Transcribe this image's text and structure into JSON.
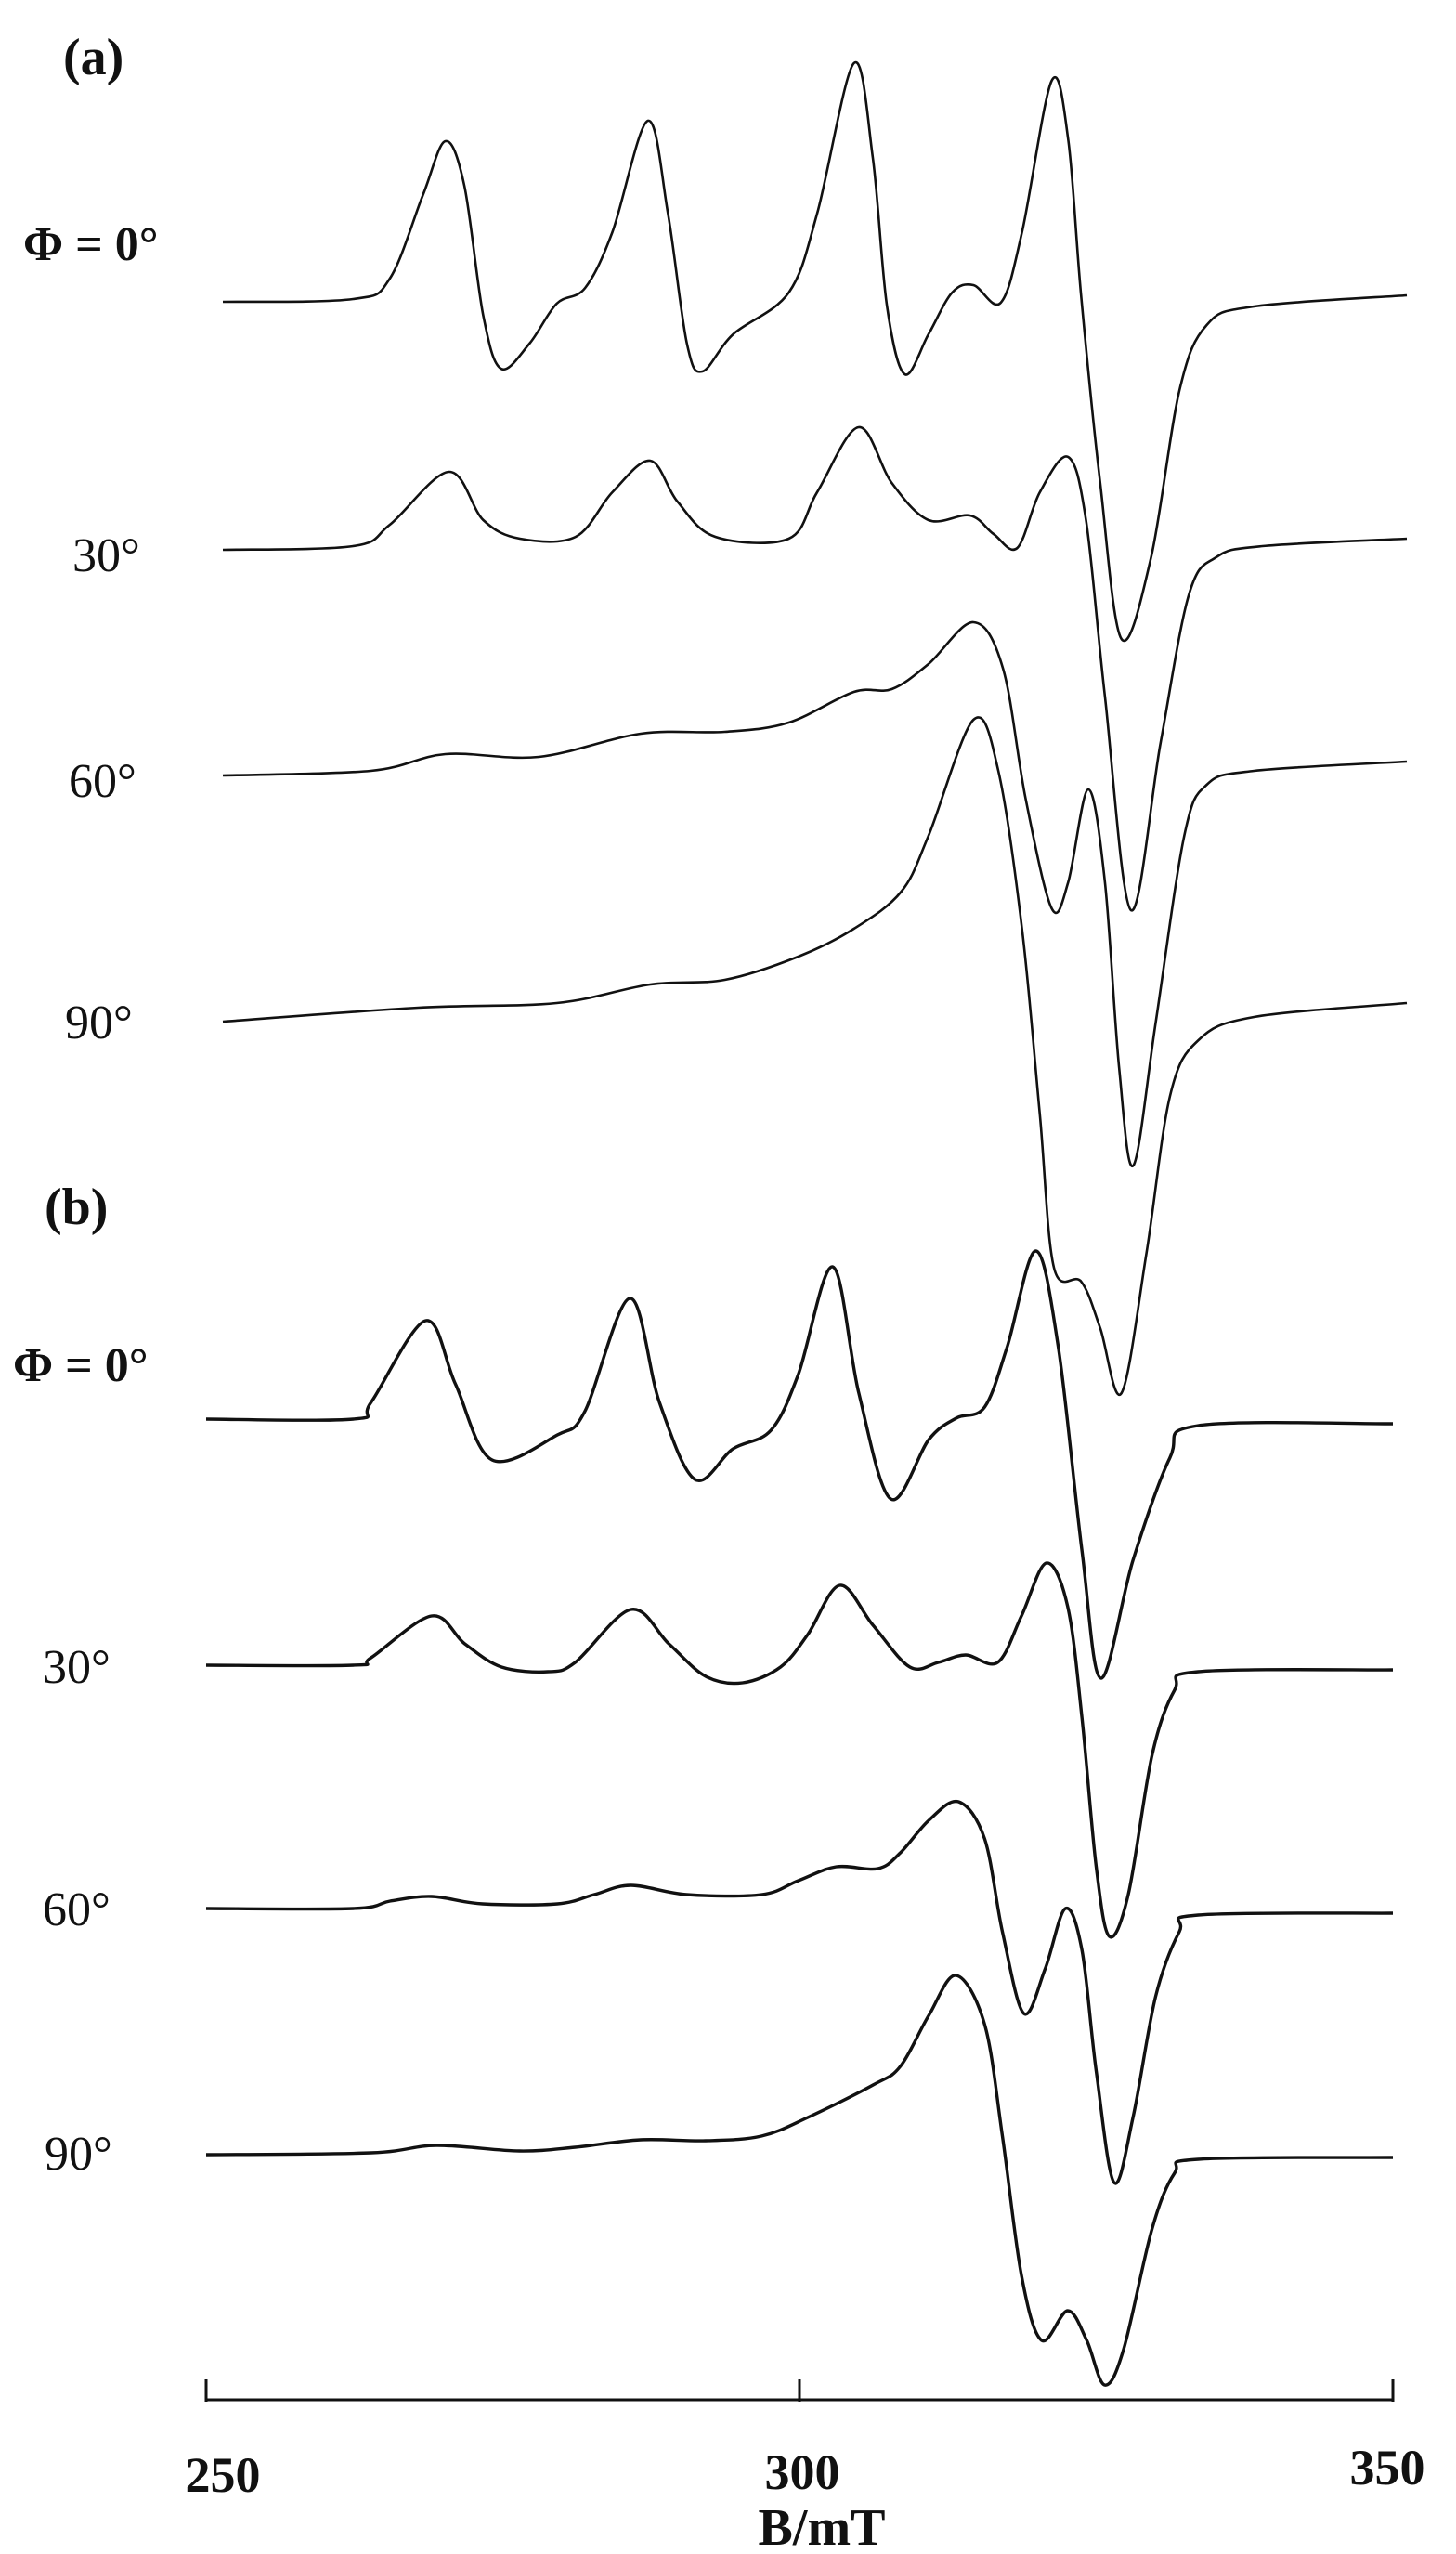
{
  "chart_data": [
    {
      "type": "line",
      "panel_label": "(a)",
      "x_unit": "B/mT",
      "xlim": [
        250,
        350
      ],
      "y_unit": "arbitrary (derivative EPR signal, traces vertically offset)",
      "series": [
        {
          "name": "Φ = 0°",
          "points": [
            [
              250,
              0
            ],
            [
              261.0,
              0.03
            ],
            [
              264.1,
              0.25
            ],
            [
              266.9,
              1.15
            ],
            [
              268.8,
              1.73
            ],
            [
              270.4,
              1.25
            ],
            [
              272.0,
              -0.15
            ],
            [
              273.5,
              -0.72
            ],
            [
              275.9,
              -0.45
            ],
            [
              278.2,
              -0.02
            ],
            [
              280.6,
              0.15
            ],
            [
              282.9,
              0.75
            ],
            [
              285.9,
              1.95
            ],
            [
              287.6,
              0.95
            ],
            [
              289.2,
              -0.45
            ],
            [
              290.5,
              -0.75
            ],
            [
              293.1,
              -0.35
            ],
            [
              297.8,
              0.1
            ],
            [
              300.2,
              0.95
            ],
            [
              303.3,
              2.57
            ],
            [
              304.9,
              1.55
            ],
            [
              306.1,
              -0.05
            ],
            [
              307.6,
              -0.78
            ],
            [
              309.6,
              -0.35
            ],
            [
              311.6,
              0.1
            ],
            [
              313.4,
              0.18
            ],
            [
              315.7,
              -0.01
            ],
            [
              317.5,
              0.75
            ],
            [
              320.0,
              2.38
            ],
            [
              321.4,
              1.75
            ],
            [
              322.5,
              0.05
            ],
            [
              324.1,
              -1.95
            ],
            [
              325.9,
              -3.63
            ],
            [
              328.4,
              -2.75
            ],
            [
              330.8,
              -0.95
            ],
            [
              333.1,
              -0.25
            ],
            [
              337.1,
              -0.05
            ],
            [
              350,
              0.07
            ]
          ]
        },
        {
          "name": "30°",
          "points": [
            [
              250,
              0
            ],
            [
              261.0,
              0.04
            ],
            [
              264.1,
              0.27
            ],
            [
              269.1,
              0.84
            ],
            [
              272.0,
              0.32
            ],
            [
              275.1,
              0.12
            ],
            [
              279.8,
              0.14
            ],
            [
              282.9,
              0.62
            ],
            [
              286.1,
              0.96
            ],
            [
              288.4,
              0.52
            ],
            [
              291.6,
              0.14
            ],
            [
              297.8,
              0.12
            ],
            [
              300.2,
              0.62
            ],
            [
              303.7,
              1.32
            ],
            [
              306.5,
              0.72
            ],
            [
              309.6,
              0.32
            ],
            [
              313.1,
              0.37
            ],
            [
              315.1,
              0.17
            ],
            [
              317.1,
              0.02
            ],
            [
              319.0,
              0.62
            ],
            [
              321.4,
              1.0
            ],
            [
              322.9,
              0.32
            ],
            [
              324.5,
              -1.58
            ],
            [
              326.7,
              -3.88
            ],
            [
              329.2,
              -2.08
            ],
            [
              331.6,
              -0.48
            ],
            [
              333.9,
              -0.08
            ],
            [
              337.8,
              0.04
            ],
            [
              350,
              0.12
            ]
          ]
        },
        {
          "name": "60°",
          "points": [
            [
              250,
              0
            ],
            [
              262.5,
              0.05
            ],
            [
              268.8,
              0.23
            ],
            [
              276.7,
              0.2
            ],
            [
              285.3,
              0.45
            ],
            [
              292.4,
              0.47
            ],
            [
              297.8,
              0.57
            ],
            [
              303.3,
              0.9
            ],
            [
              306.5,
              0.93
            ],
            [
              309.6,
              1.2
            ],
            [
              313.4,
              1.65
            ],
            [
              315.9,
              1.15
            ],
            [
              317.8,
              -0.25
            ],
            [
              320.0,
              -1.43
            ],
            [
              321.4,
              -1.15
            ],
            [
              323.1,
              -0.15
            ],
            [
              324.5,
              -1.15
            ],
            [
              325.7,
              -3.15
            ],
            [
              326.9,
              -4.2
            ],
            [
              328.8,
              -2.65
            ],
            [
              331.2,
              -0.65
            ],
            [
              333.1,
              -0.1
            ],
            [
              337.1,
              0.05
            ],
            [
              350,
              0.15
            ]
          ]
        },
        {
          "name": "90°",
          "points": [
            [
              250,
              0
            ],
            [
              266.5,
              0.15
            ],
            [
              278.2,
              0.2
            ],
            [
              286.1,
              0.4
            ],
            [
              292.4,
              0.45
            ],
            [
              298.6,
              0.7
            ],
            [
              303.3,
              1.0
            ],
            [
              307.3,
              1.4
            ],
            [
              309.6,
              2.0
            ],
            [
              313.4,
              3.25
            ],
            [
              315.5,
              2.7
            ],
            [
              317.5,
              1.0
            ],
            [
              319.0,
              -1.0
            ],
            [
              320.2,
              -2.65
            ],
            [
              322.5,
              -2.8
            ],
            [
              324.1,
              -3.3
            ],
            [
              325.9,
              -4.0
            ],
            [
              328.0,
              -2.5
            ],
            [
              330.0,
              -0.8
            ],
            [
              332.4,
              -0.2
            ],
            [
              337.1,
              0.05
            ],
            [
              350,
              0.2
            ]
          ]
        }
      ]
    },
    {
      "type": "line",
      "panel_label": "(b)",
      "xlabel": "B/mT",
      "xlim": [
        250,
        350
      ],
      "xticks": [
        "250",
        "300",
        "350"
      ],
      "y_unit": "arbitrary (derivative EPR signal, traces vertically offset)",
      "series": [
        {
          "name": "Φ = 0°",
          "points": [
            [
              250,
              0
            ],
            [
              262.4,
              0
            ],
            [
              263.9,
              0.18
            ],
            [
              268.5,
              1.06
            ],
            [
              271.0,
              0.38
            ],
            [
              274.1,
              -0.44
            ],
            [
              279.6,
              -0.17
            ],
            [
              281.9,
              0.08
            ],
            [
              285.7,
              1.3
            ],
            [
              288.2,
              0.18
            ],
            [
              291.2,
              -0.65
            ],
            [
              294.4,
              -0.32
            ],
            [
              297.6,
              -0.12
            ],
            [
              299.9,
              0.48
            ],
            [
              302.8,
              1.64
            ],
            [
              305.0,
              0.28
            ],
            [
              307.7,
              -0.86
            ],
            [
              310.9,
              -0.22
            ],
            [
              313.2,
              0.01
            ],
            [
              315.6,
              0.13
            ],
            [
              317.5,
              0.78
            ],
            [
              319.9,
              1.81
            ],
            [
              321.8,
              0.78
            ],
            [
              323.8,
              -1.42
            ],
            [
              325.4,
              -2.79
            ],
            [
              328.1,
              -1.52
            ],
            [
              331.2,
              -0.42
            ],
            [
              333.6,
              -0.07
            ],
            [
              350,
              -0.05
            ]
          ]
        },
        {
          "name": "30°",
          "points": [
            [
              250,
              0
            ],
            [
              262.4,
              0
            ],
            [
              263.9,
              0.08
            ],
            [
              269.0,
              0.53
            ],
            [
              271.8,
              0.23
            ],
            [
              274.9,
              -0.02
            ],
            [
              278.8,
              -0.07
            ],
            [
              281.1,
              0.03
            ],
            [
              285.8,
              0.6
            ],
            [
              289.0,
              0.23
            ],
            [
              292.1,
              -0.12
            ],
            [
              295.2,
              -0.19
            ],
            [
              298.4,
              -0.02
            ],
            [
              300.7,
              0.33
            ],
            [
              303.4,
              0.86
            ],
            [
              306.2,
              0.43
            ],
            [
              309.3,
              -0.02
            ],
            [
              311.7,
              0.03
            ],
            [
              314.0,
              0.11
            ],
            [
              316.7,
              0.03
            ],
            [
              318.7,
              0.53
            ],
            [
              320.8,
              1.1
            ],
            [
              322.6,
              0.63
            ],
            [
              323.8,
              -0.57
            ],
            [
              325.0,
              -2.17
            ],
            [
              326.1,
              -2.92
            ],
            [
              327.7,
              -2.47
            ],
            [
              329.7,
              -0.97
            ],
            [
              331.6,
              -0.27
            ],
            [
              333.6,
              -0.07
            ],
            [
              350,
              -0.05
            ]
          ]
        },
        {
          "name": "60°",
          "points": [
            [
              250,
              0
            ],
            [
              262.4,
              0
            ],
            [
              265.5,
              0.08
            ],
            [
              269.0,
              0.13
            ],
            [
              273.3,
              0.05
            ],
            [
              279.6,
              0.05
            ],
            [
              282.7,
              0.15
            ],
            [
              285.8,
              0.25
            ],
            [
              290.5,
              0.15
            ],
            [
              296.8,
              0.15
            ],
            [
              299.9,
              0.3
            ],
            [
              303.1,
              0.45
            ],
            [
              306.6,
              0.43
            ],
            [
              308.5,
              0.6
            ],
            [
              310.9,
              0.95
            ],
            [
              313.4,
              1.15
            ],
            [
              315.6,
              0.75
            ],
            [
              317.1,
              -0.25
            ],
            [
              318.9,
              -1.13
            ],
            [
              320.7,
              -0.65
            ],
            [
              322.4,
              0
            ],
            [
              323.8,
              -0.45
            ],
            [
              325.0,
              -1.75
            ],
            [
              326.5,
              -2.95
            ],
            [
              328.1,
              -2.25
            ],
            [
              330.0,
              -0.95
            ],
            [
              332.0,
              -0.25
            ],
            [
              333.6,
              -0.07
            ],
            [
              350,
              -0.05
            ]
          ]
        },
        {
          "name": "90°",
          "points": [
            [
              250,
              0
            ],
            [
              263.9,
              0.02
            ],
            [
              269.4,
              0.1
            ],
            [
              276.4,
              0.04
            ],
            [
              281.1,
              0.08
            ],
            [
              286.6,
              0.16
            ],
            [
              292.1,
              0.15
            ],
            [
              296.8,
              0.2
            ],
            [
              300.7,
              0.4
            ],
            [
              306.2,
              0.75
            ],
            [
              308.5,
              0.95
            ],
            [
              310.9,
              1.5
            ],
            [
              313.2,
              1.93
            ],
            [
              315.6,
              1.4
            ],
            [
              317.1,
              0.2
            ],
            [
              318.7,
              -1.3
            ],
            [
              320.4,
              -2.0
            ],
            [
              322.6,
              -1.68
            ],
            [
              324.2,
              -2.0
            ],
            [
              325.7,
              -2.48
            ],
            [
              327.3,
              -2.1
            ],
            [
              329.7,
              -0.8
            ],
            [
              331.6,
              -0.2
            ],
            [
              333.6,
              -0.05
            ],
            [
              350,
              -0.03
            ]
          ]
        }
      ]
    }
  ],
  "labels": {
    "panel_a": "(a)",
    "panel_b": "(b)",
    "a_0": "Φ = 0°",
    "a_30": "30°",
    "a_60": "60°",
    "a_90": "90°",
    "b_0": "Φ = 0°",
    "b_30": "30°",
    "b_60": "60°",
    "b_90": "90°",
    "tick_250": "250",
    "tick_300": "300",
    "tick_350": "350",
    "xlabel": "B/mT"
  }
}
